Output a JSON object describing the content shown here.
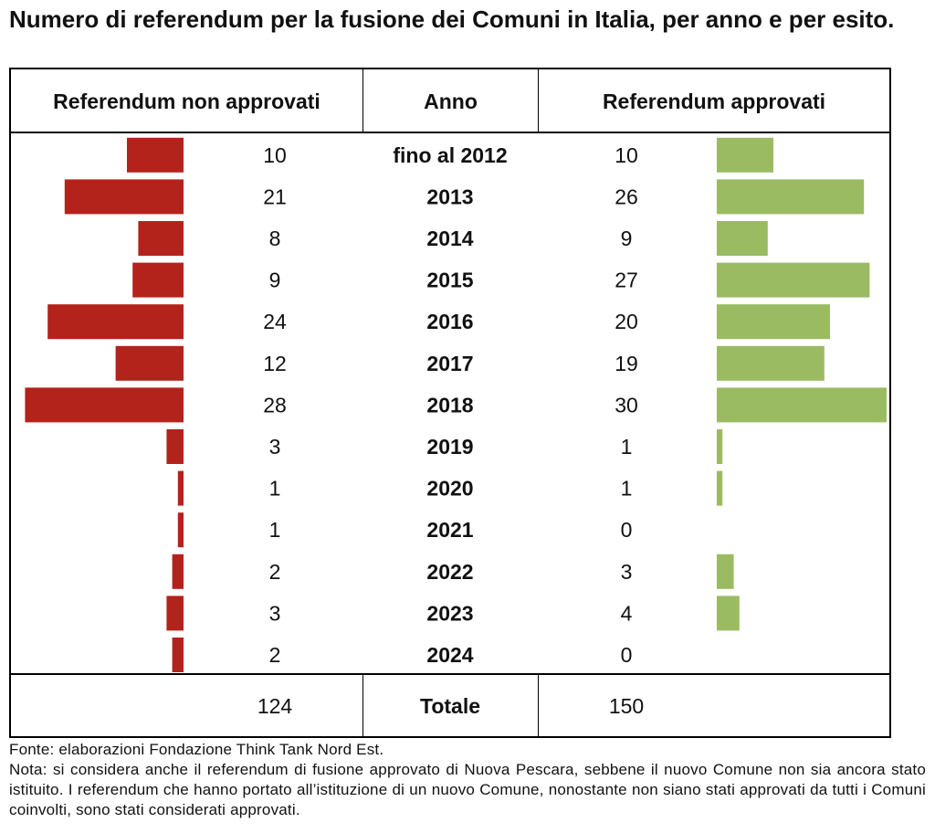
{
  "title": "Numero di referendum per la fusione dei Comuni in Italia, per anno e per esito.",
  "headers": {
    "not_approved": "Referendum non approvati",
    "year": "Anno",
    "approved": "Referendum approvati"
  },
  "chart_data": {
    "type": "bar",
    "orientation": "horizontal-butterfly",
    "categories": [
      "fino al 2012",
      "2013",
      "2014",
      "2015",
      "2016",
      "2017",
      "2018",
      "2019",
      "2020",
      "2021",
      "2022",
      "2023",
      "2024"
    ],
    "series": [
      {
        "name": "Referendum non approvati",
        "values": [
          10,
          21,
          8,
          9,
          24,
          12,
          28,
          3,
          1,
          1,
          2,
          3,
          2
        ],
        "color": "#b3231c"
      },
      {
        "name": "Referendum approvati",
        "values": [
          10,
          26,
          9,
          27,
          20,
          19,
          30,
          1,
          1,
          0,
          3,
          4,
          0
        ],
        "color": "#9bbb63"
      }
    ],
    "totals": {
      "label": "Totale",
      "not_approved": "124",
      "approved": "150"
    }
  },
  "footer": {
    "source": "Fonte: elaborazioni Fondazione Think Tank Nord Est.",
    "note": "Nota: si considera anche il referendum di fusione approvato di Nuova Pescara, sebbene il nuovo Comune non sia ancora stato istituito. I referendum che hanno portato all’istituzione di un nuovo Comune, nonostante non siano stati approvati da tutti i Comuni coinvolti, sono stati considerati approvati."
  }
}
